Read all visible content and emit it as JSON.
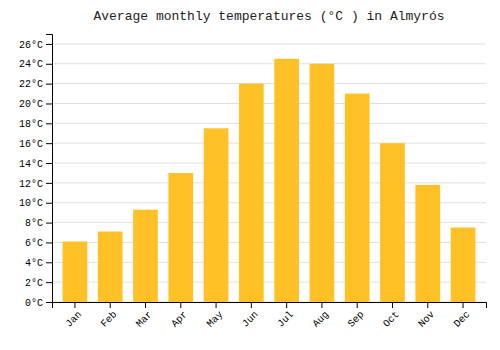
{
  "chart_data": {
    "type": "bar",
    "title": "Average monthly temperatures (°C ) in Almyrós",
    "categories": [
      "Jan",
      "Feb",
      "Mar",
      "Apr",
      "May",
      "Jun",
      "Jul",
      "Aug",
      "Sep",
      "Oct",
      "Nov",
      "Dec"
    ],
    "values": [
      6.1,
      7.1,
      9.3,
      13.0,
      17.5,
      22.0,
      24.5,
      24.0,
      21.0,
      16.0,
      11.8,
      7.5
    ],
    "color": "#FFC125",
    "ylim": [
      0,
      27
    ],
    "yticks": [
      {
        "value": 0,
        "label": "0°C"
      },
      {
        "value": 2,
        "label": "2°C"
      },
      {
        "value": 4,
        "label": "4°C"
      },
      {
        "value": 6,
        "label": "6°C"
      },
      {
        "value": 8,
        "label": "8°C"
      },
      {
        "value": 10,
        "label": "10°C"
      },
      {
        "value": 12,
        "label": "12°C"
      },
      {
        "value": 14,
        "label": "14°C"
      },
      {
        "value": 16,
        "label": "16°C"
      },
      {
        "value": 18,
        "label": "18°C"
      },
      {
        "value": 20,
        "label": "20°C"
      },
      {
        "value": 22,
        "label": "22°C"
      },
      {
        "value": 24,
        "label": "24°C"
      },
      {
        "value": 26,
        "label": "26°C"
      }
    ],
    "grid": true
  }
}
